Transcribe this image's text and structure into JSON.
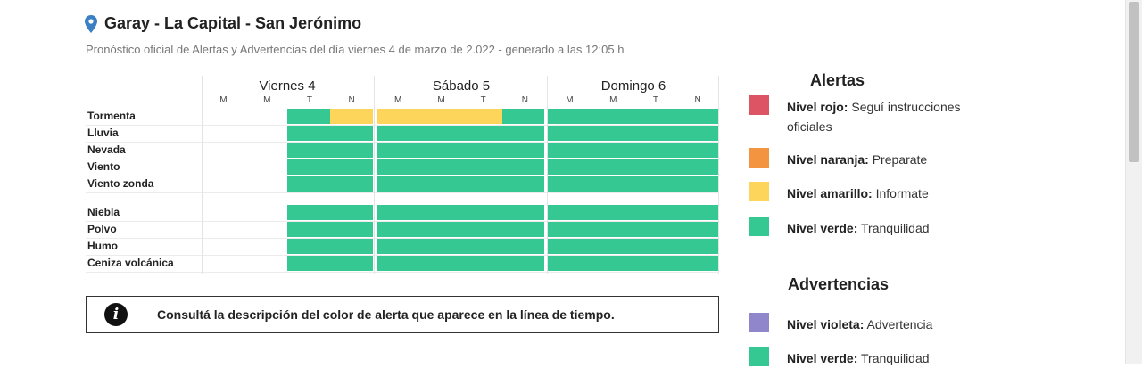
{
  "location": {
    "title": "Garay - La Capital - San Jerónimo",
    "subtitle": "Pronóstico oficial de Alertas y Advertencias del día viernes 4 de marzo de 2.022 - generado a las 12:05 h",
    "pin_icon": "map-pin-icon"
  },
  "colors": {
    "green": "#35c892",
    "yellow": "#fdd55a",
    "red": "#dd5465",
    "orange": "#f39540",
    "violet": "#8f86cc",
    "empty": "#ffffff"
  },
  "timeline": {
    "days": [
      {
        "label": "Viernes 4",
        "slots": [
          "M",
          "M",
          "T",
          "N"
        ]
      },
      {
        "label": "Sábado 5",
        "slots": [
          "M",
          "M",
          "T",
          "N"
        ]
      },
      {
        "label": "Domingo 6",
        "slots": [
          "M",
          "M",
          "T",
          "N"
        ]
      }
    ],
    "rows": [
      {
        "label": "Tormenta",
        "cells": [
          "none",
          "none",
          "green",
          "yellow",
          "yellow",
          "yellow",
          "yellow",
          "green",
          "green",
          "green",
          "green",
          "green"
        ]
      },
      {
        "label": "Lluvia",
        "cells": [
          "none",
          "none",
          "green",
          "green",
          "green",
          "green",
          "green",
          "green",
          "green",
          "green",
          "green",
          "green"
        ]
      },
      {
        "label": "Nevada",
        "cells": [
          "none",
          "none",
          "green",
          "green",
          "green",
          "green",
          "green",
          "green",
          "green",
          "green",
          "green",
          "green"
        ]
      },
      {
        "label": "Viento",
        "cells": [
          "none",
          "none",
          "green",
          "green",
          "green",
          "green",
          "green",
          "green",
          "green",
          "green",
          "green",
          "green"
        ]
      },
      {
        "label": "Viento zonda",
        "cells": [
          "none",
          "none",
          "green",
          "green",
          "green",
          "green",
          "green",
          "green",
          "green",
          "green",
          "green",
          "green"
        ]
      },
      {
        "label": "Niebla",
        "cells": [
          "none",
          "none",
          "green",
          "green",
          "green",
          "green",
          "green",
          "green",
          "green",
          "green",
          "green",
          "green"
        ]
      },
      {
        "label": "Polvo",
        "cells": [
          "none",
          "none",
          "green",
          "green",
          "green",
          "green",
          "green",
          "green",
          "green",
          "green",
          "green",
          "green"
        ]
      },
      {
        "label": "Humo",
        "cells": [
          "none",
          "none",
          "green",
          "green",
          "green",
          "green",
          "green",
          "green",
          "green",
          "green",
          "green",
          "green"
        ]
      },
      {
        "label": "Ceniza volcánica",
        "cells": [
          "none",
          "none",
          "green",
          "green",
          "green",
          "green",
          "green",
          "green",
          "green",
          "green",
          "green",
          "green"
        ]
      }
    ]
  },
  "info": {
    "icon": "info-icon",
    "icon_glyph": "i",
    "text": "Consultá la descripción del color de alerta que aparece en la línea de tiempo."
  },
  "legend": {
    "alertas_title": "Alertas",
    "alertas": [
      {
        "bold": "Nivel rojo:",
        "text": " Seguí instrucciones oficiales",
        "color": "#dd5465"
      },
      {
        "bold": "Nivel naranja:",
        "text": " Preparate",
        "color": "#f39540"
      },
      {
        "bold": "Nivel amarillo:",
        "text": " Informate",
        "color": "#fdd55a"
      },
      {
        "bold": "Nivel verde:",
        "text": " Tranquilidad",
        "color": "#35c892"
      }
    ],
    "advertencias_title": "Advertencias",
    "advertencias": [
      {
        "bold": "Nivel violeta:",
        "text": " Advertencia",
        "color": "#8f86cc"
      },
      {
        "bold": "Nivel verde:",
        "text": " Tranquilidad",
        "color": "#35c892"
      }
    ]
  }
}
